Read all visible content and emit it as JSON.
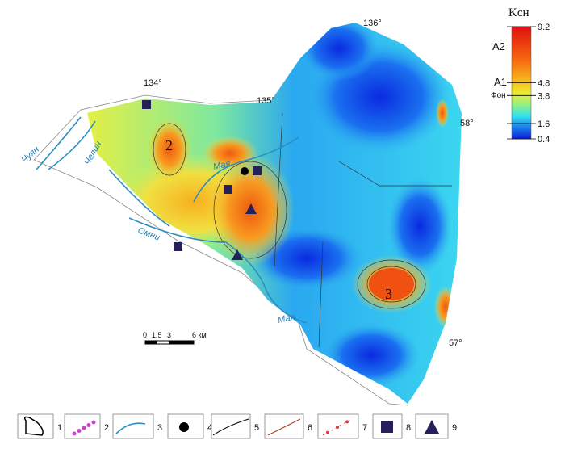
{
  "colorbar": {
    "title": "Kсн",
    "range": [
      0.4,
      9.2
    ],
    "ticks": [
      9.2,
      4.8,
      3.8,
      1.6,
      0.4
    ],
    "levels": [
      "A2",
      "A1",
      "Фон"
    ]
  },
  "map": {
    "graticule": [
      "134°",
      "135°",
      "136°",
      "58°",
      "57°"
    ],
    "rivers": [
      "Чуян",
      "Челин",
      "Мая",
      "Омни",
      "Мая"
    ],
    "anomalies": [
      "2",
      "3"
    ],
    "scale": [
      "0",
      "1,5",
      "3",
      "6 км"
    ]
  },
  "legend": [
    "1",
    "2",
    "3",
    "4",
    "5",
    "6",
    "7",
    "8",
    "9"
  ]
}
